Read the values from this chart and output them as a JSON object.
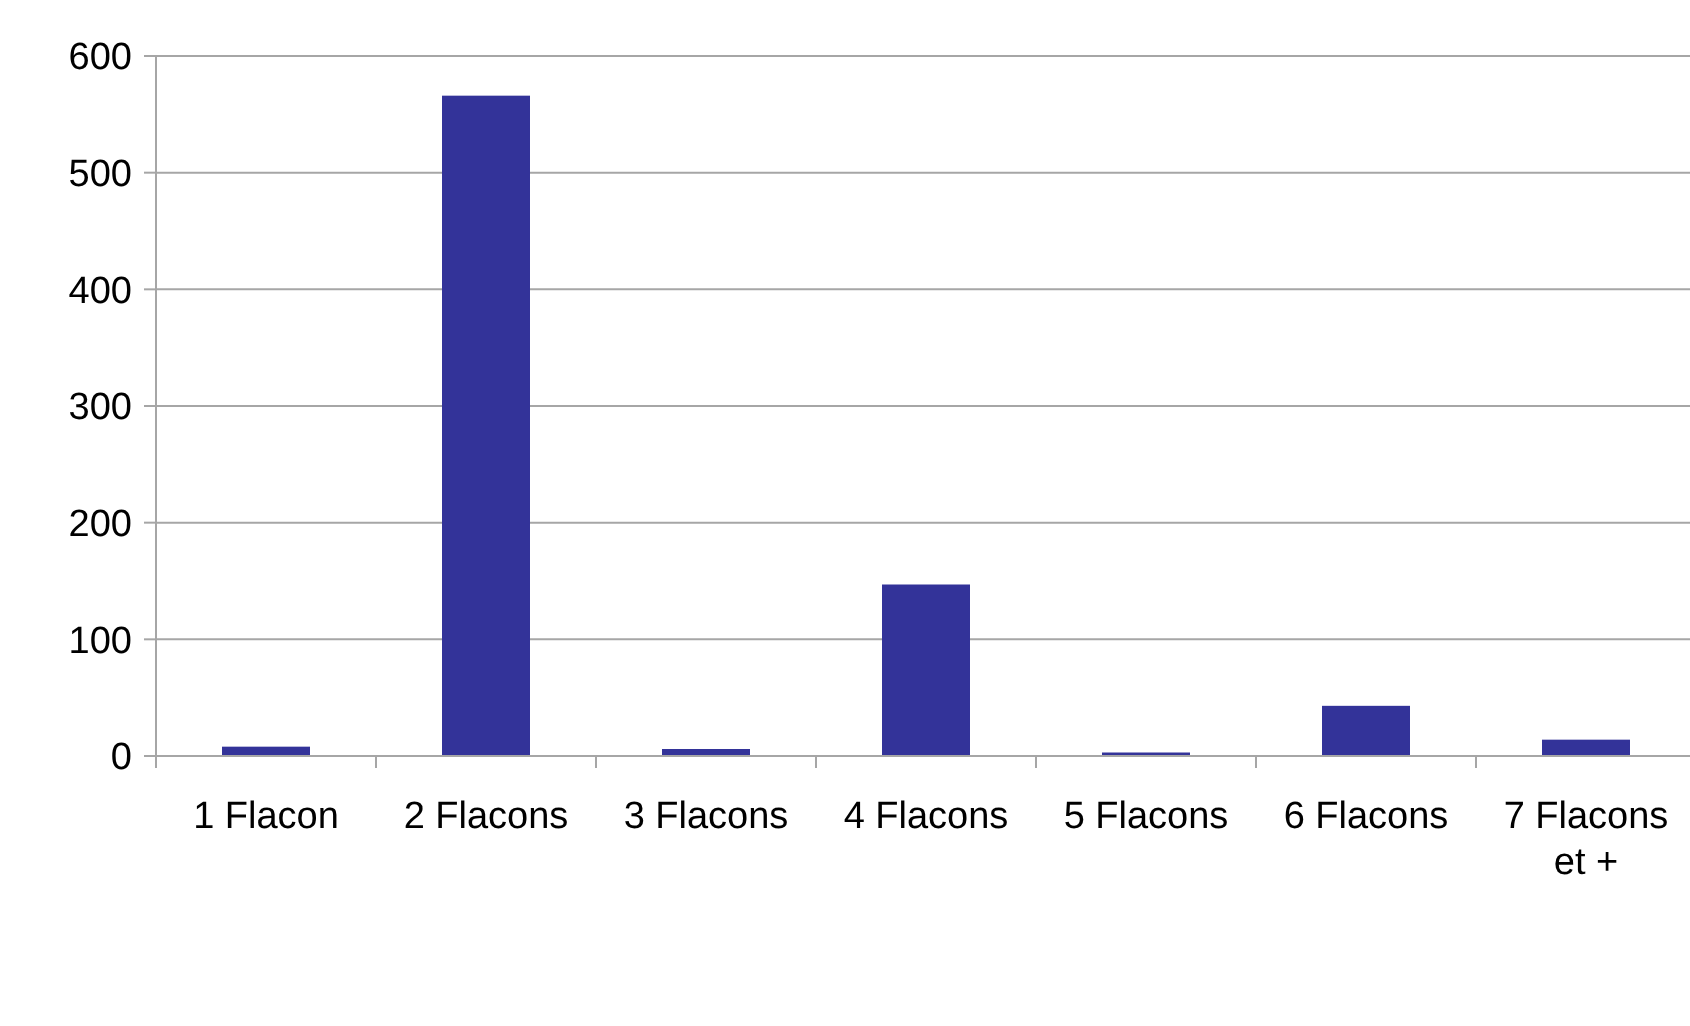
{
  "chart_data": {
    "type": "bar",
    "categories": [
      "1 Flacon",
      "2 Flacons",
      "3 Flacons",
      "4 Flacons",
      "5 Flacons",
      "6 Flacons",
      "7 Flacons et +"
    ],
    "values": [
      8,
      566,
      6,
      147,
      3,
      43,
      14
    ],
    "color": "#333399",
    "ylim": [
      0,
      600
    ],
    "yticks": [
      0,
      100,
      200,
      300,
      400,
      500,
      600
    ],
    "grid": "y"
  }
}
